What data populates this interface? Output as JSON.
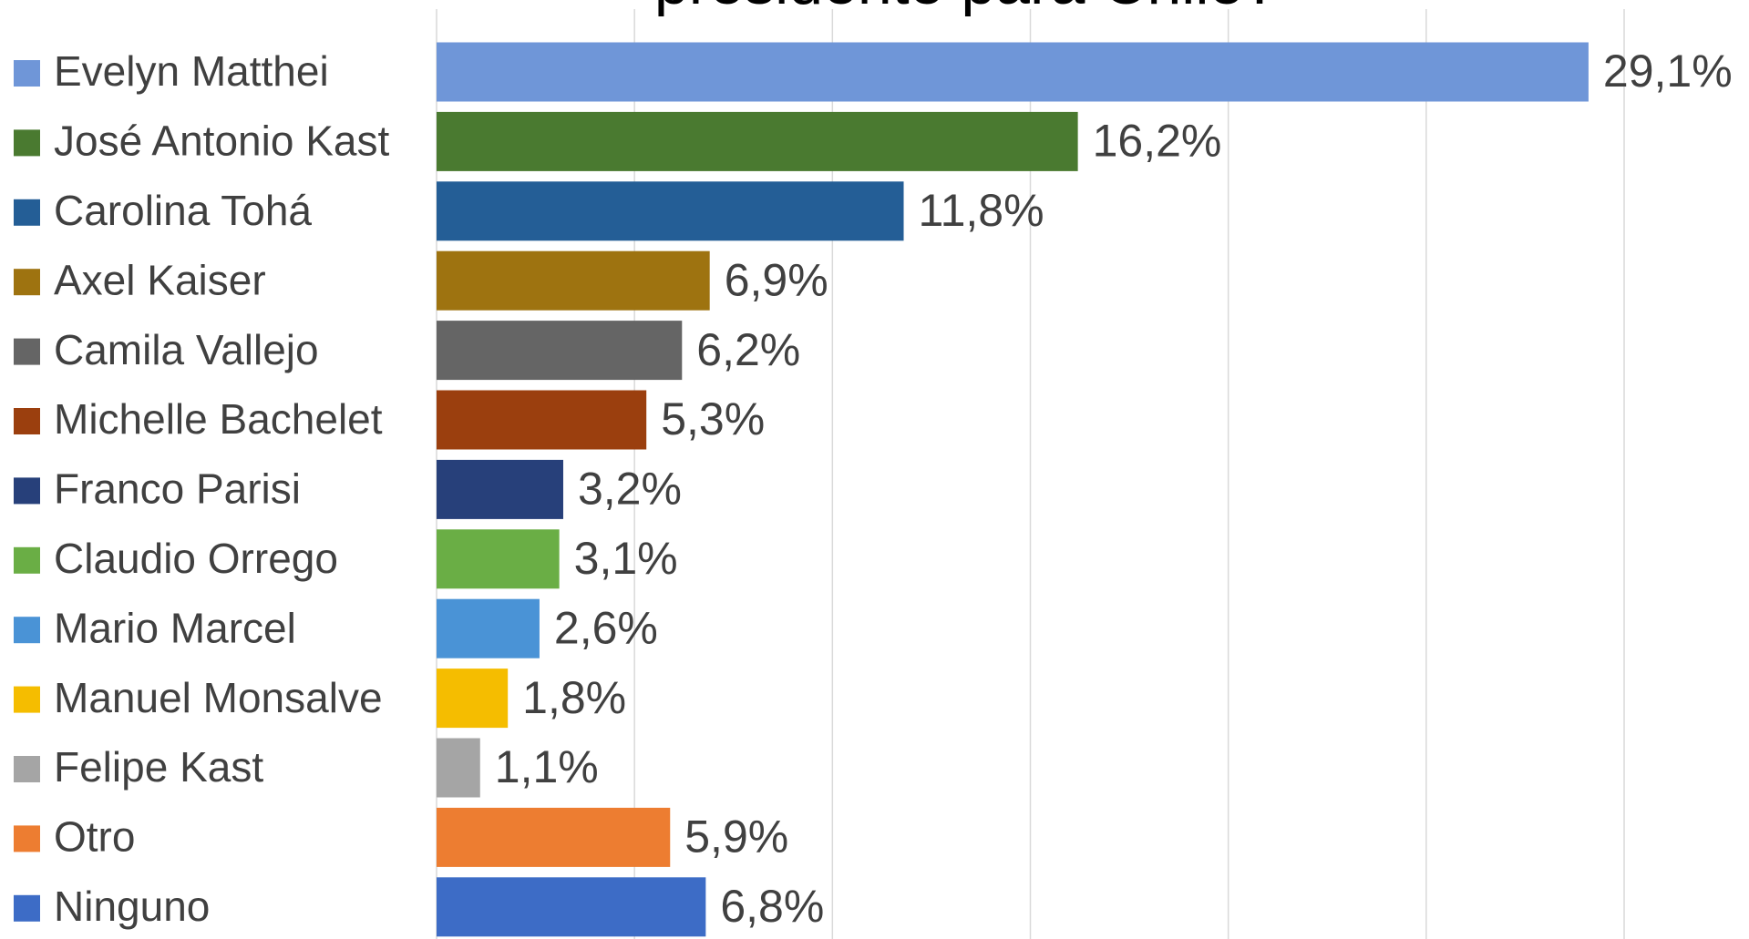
{
  "chart_data": {
    "type": "hbar",
    "title": "presidente para Chile?",
    "categories": [
      "Evelyn Matthei",
      "José Antonio Kast",
      "Carolina Tohá",
      "Axel Kaiser",
      "Camila Vallejo",
      "Michelle Bachelet",
      "Franco Parisi",
      "Claudio Orrego",
      "Mario Marcel",
      "Manuel Monsalve",
      "Felipe Kast",
      "Otro",
      "Ninguno"
    ],
    "values": [
      29.1,
      16.2,
      11.8,
      6.9,
      6.2,
      5.3,
      3.2,
      3.1,
      2.6,
      1.8,
      1.1,
      5.9,
      6.8
    ],
    "value_labels": [
      "29,1%",
      "16,2%",
      "11,8%",
      "6,9%",
      "6,2%",
      "5,3%",
      "3,2%",
      "3,1%",
      "2,6%",
      "1,8%",
      "1,1%",
      "5,9%",
      "6,8%"
    ],
    "colors": [
      "#6f96d8",
      "#4a7a30",
      "#245e96",
      "#9e7310",
      "#656565",
      "#9b3f0e",
      "#27407a",
      "#6aae45",
      "#4a93d6",
      "#f5bd00",
      "#a5a5a5",
      "#ed7d31",
      "#3d6cc6"
    ],
    "xlim": [
      0,
      30
    ],
    "xticks": [
      0,
      5,
      10,
      15,
      20,
      25,
      30
    ],
    "grid": true,
    "legend": "left"
  }
}
